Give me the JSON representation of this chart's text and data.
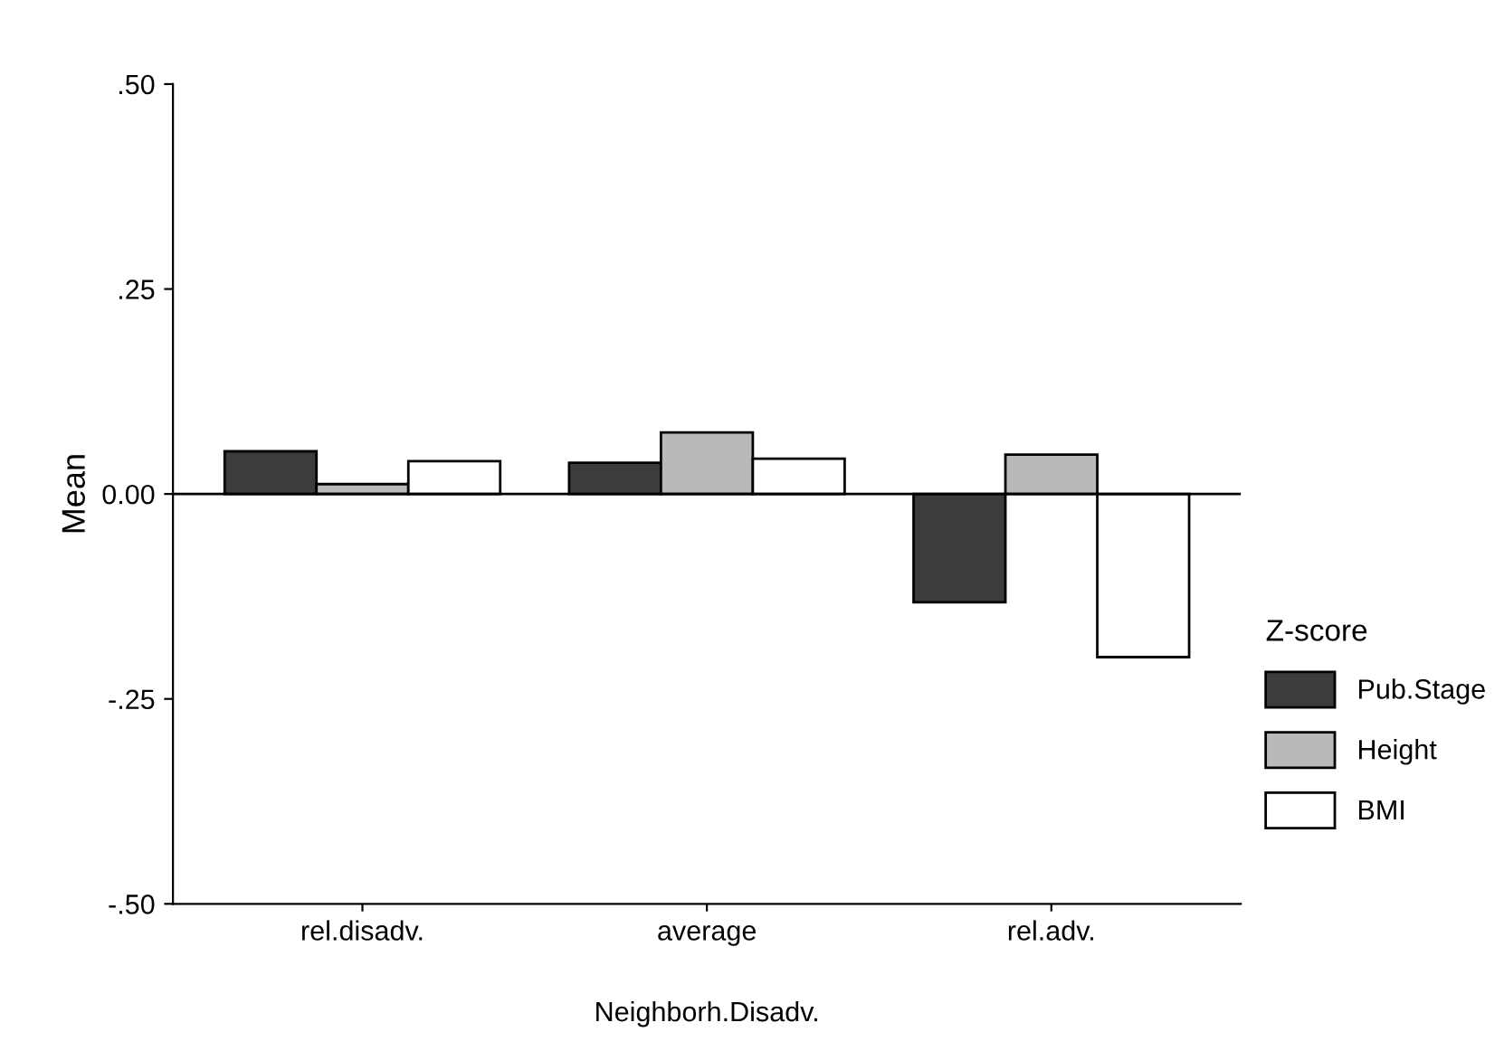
{
  "chart_data": {
    "type": "bar",
    "xlabel": "Neighborh.Disadv.",
    "ylabel": "Mean",
    "legend_title": "Z-score",
    "categories": [
      "rel.disadv.",
      "average",
      "rel.adv."
    ],
    "series": [
      {
        "name": "Pub.Stage",
        "color": "#3c3c3c",
        "values": [
          0.052,
          0.038,
          -0.132
        ]
      },
      {
        "name": "Height",
        "color": "#b9b9b9",
        "values": [
          0.012,
          0.075,
          0.048
        ]
      },
      {
        "name": "BMI",
        "color": "#ffffff",
        "values": [
          0.04,
          0.043,
          -0.199
        ]
      }
    ],
    "ylim": [
      -0.5,
      0.5
    ],
    "yticks": [
      {
        "value": 0.5,
        "label": ".50"
      },
      {
        "value": 0.25,
        "label": ".25"
      },
      {
        "value": 0,
        "label": "0.00"
      },
      {
        "value": -0.25,
        "label": "-.25"
      },
      {
        "value": -0.5,
        "label": "-.50"
      }
    ],
    "ref_lines": [
      {
        "axis": "y",
        "value": 0,
        "label": null,
        "color": "#000000"
      }
    ],
    "grid": false,
    "legend": "right"
  }
}
